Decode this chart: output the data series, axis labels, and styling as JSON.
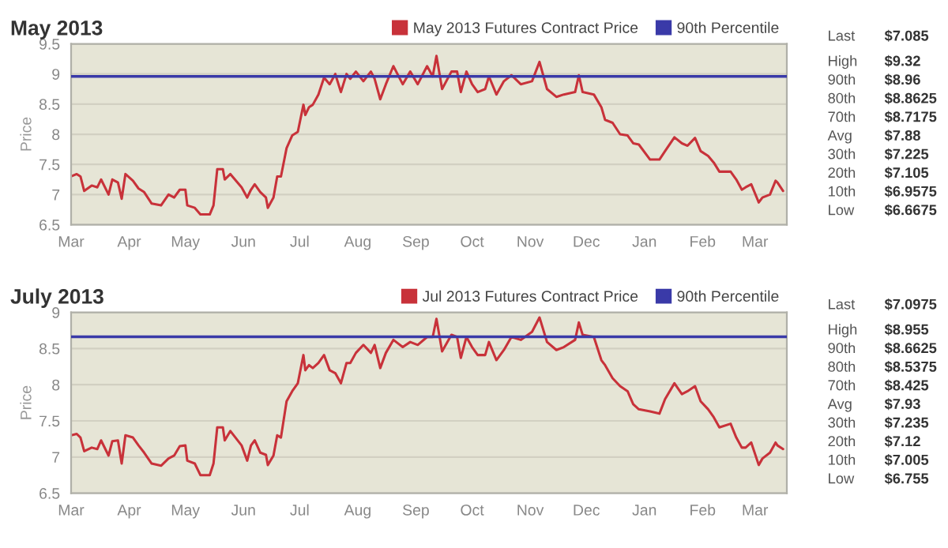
{
  "chart_data": [
    {
      "type": "line",
      "title": "May 2013",
      "ylabel": "Price",
      "x": [
        "2012-03-01",
        "2012-03-04",
        "2012-03-06",
        "2012-03-08",
        "2012-03-12",
        "2012-03-15",
        "2012-03-17",
        "2012-03-21",
        "2012-03-23",
        "2012-03-26",
        "2012-03-28",
        "2012-03-30",
        "2012-04-03",
        "2012-04-06",
        "2012-04-09",
        "2012-04-13",
        "2012-04-18",
        "2012-04-22",
        "2012-04-25",
        "2012-04-28",
        "2012-05-01",
        "2012-05-02",
        "2012-05-06",
        "2012-05-09",
        "2012-05-14",
        "2012-05-16",
        "2012-05-18",
        "2012-05-21",
        "2012-05-22",
        "2012-05-25",
        "2012-05-31",
        "2012-06-03",
        "2012-06-05",
        "2012-06-07",
        "2012-06-10",
        "2012-06-13",
        "2012-06-14",
        "2012-06-17",
        "2012-06-19",
        "2012-06-21",
        "2012-06-24",
        "2012-06-27",
        "2012-06-30",
        "2012-07-03",
        "2012-07-04",
        "2012-07-06",
        "2012-07-08",
        "2012-07-11",
        "2012-07-14",
        "2012-07-17",
        "2012-07-20",
        "2012-07-23",
        "2012-07-26",
        "2012-07-28",
        "2012-07-31",
        "2012-08-04",
        "2012-08-08",
        "2012-08-10",
        "2012-08-13",
        "2012-08-16",
        "2012-08-20",
        "2012-08-25",
        "2012-08-29",
        "2012-09-02",
        "2012-09-07",
        "2012-09-10",
        "2012-09-12",
        "2012-09-15",
        "2012-09-20",
        "2012-09-23",
        "2012-09-25",
        "2012-09-28",
        "2012-10-01",
        "2012-10-04",
        "2012-10-08",
        "2012-10-10",
        "2012-10-14",
        "2012-10-18",
        "2012-10-22",
        "2012-10-27",
        "2012-11-02",
        "2012-11-06",
        "2012-11-10",
        "2012-11-15",
        "2012-11-19",
        "2012-11-25",
        "2012-11-27",
        "2012-11-29",
        "2012-12-05",
        "2012-12-09",
        "2012-12-11",
        "2012-12-15",
        "2012-12-19",
        "2012-12-23",
        "2012-12-26",
        "2012-12-29",
        "2013-01-04",
        "2013-01-09",
        "2013-01-12",
        "2013-01-17",
        "2013-01-21",
        "2013-01-24",
        "2013-01-28",
        "2013-01-31",
        "2013-02-04",
        "2013-02-07",
        "2013-02-10",
        "2013-02-16",
        "2013-02-19",
        "2013-02-22",
        "2013-02-24",
        "2013-02-27",
        "2013-03-03",
        "2013-03-05",
        "2013-03-09",
        "2013-03-12",
        "2013-03-13",
        "2013-03-16"
      ],
      "series": [
        {
          "name": "May 2013 Futures Contract Price",
          "color": "#c8323a",
          "values": [
            7.3,
            7.34,
            7.3,
            7.06,
            7.15,
            7.12,
            7.25,
            7.0,
            7.25,
            7.2,
            6.93,
            7.34,
            7.23,
            7.1,
            7.04,
            6.85,
            6.82,
            7.0,
            6.95,
            7.08,
            7.08,
            6.82,
            6.78,
            6.67,
            6.67,
            6.82,
            7.42,
            7.42,
            7.25,
            7.34,
            7.12,
            6.95,
            7.08,
            7.17,
            7.04,
            6.95,
            6.78,
            6.95,
            7.3,
            7.3,
            7.77,
            7.98,
            8.04,
            8.49,
            8.32,
            8.45,
            8.49,
            8.66,
            8.94,
            8.83,
            9.0,
            8.7,
            9.0,
            8.92,
            9.04,
            8.88,
            9.04,
            8.92,
            8.58,
            8.83,
            9.13,
            8.83,
            9.04,
            8.83,
            9.13,
            8.96,
            9.3,
            8.75,
            9.04,
            9.04,
            8.7,
            9.04,
            8.83,
            8.7,
            8.75,
            8.96,
            8.66,
            8.88,
            8.98,
            8.83,
            8.88,
            9.2,
            8.75,
            8.62,
            8.66,
            8.7,
            8.98,
            8.7,
            8.66,
            8.45,
            8.24,
            8.19,
            8.0,
            7.98,
            7.85,
            7.83,
            7.58,
            7.58,
            7.72,
            7.95,
            7.85,
            7.81,
            7.94,
            7.72,
            7.64,
            7.53,
            7.38,
            7.38,
            7.25,
            7.08,
            7.12,
            7.17,
            6.87,
            6.95,
            7.0,
            7.23,
            7.2,
            7.06
          ]
        }
      ],
      "ref_lines": [
        {
          "axis": "y",
          "value": 8.96,
          "label": "90th Percentile",
          "color": "#3a3aa8"
        }
      ],
      "xlim": [
        "2012-03-01",
        "2013-03-18"
      ],
      "xticks": [
        {
          "value": "2012-03-01",
          "label": "Mar"
        },
        {
          "value": "2012-04-01",
          "label": "Apr"
        },
        {
          "value": "2012-05-01",
          "label": "May"
        },
        {
          "value": "2012-06-01",
          "label": "Jun"
        },
        {
          "value": "2012-07-01",
          "label": "Jul"
        },
        {
          "value": "2012-08-01",
          "label": "Aug"
        },
        {
          "value": "2012-09-01",
          "label": "Sep"
        },
        {
          "value": "2012-10-01",
          "label": "Oct"
        },
        {
          "value": "2012-11-01",
          "label": "Nov"
        },
        {
          "value": "2012-12-01",
          "label": "Dec"
        },
        {
          "value": "2013-01-01",
          "label": "Jan"
        },
        {
          "value": "2013-02-01",
          "label": "Feb"
        },
        {
          "value": "2013-03-01",
          "label": "Mar"
        }
      ],
      "ylim": [
        6.5,
        9.5
      ],
      "yticks": [
        6.5,
        7,
        7.5,
        8,
        8.5,
        9,
        9.5
      ],
      "grid": "y",
      "legend": "top right",
      "marker": "none",
      "line_style": "solid",
      "annotations": [
        "Last",
        "$7.085",
        "High",
        "$9.32",
        "90th",
        "$8.96",
        "80th",
        "$8.8625",
        "70th",
        "$8.7175",
        "Avg",
        "$7.88",
        "30th",
        "$7.225",
        "20th",
        "$7.105",
        "10th",
        "$6.9575",
        "Low",
        "$6.6675"
      ]
    },
    {
      "type": "line",
      "title": "July 2013",
      "ylabel": "Price",
      "x": [
        "2012-03-01",
        "2012-03-04",
        "2012-03-06",
        "2012-03-08",
        "2012-03-12",
        "2012-03-15",
        "2012-03-17",
        "2012-03-21",
        "2012-03-23",
        "2012-03-26",
        "2012-03-28",
        "2012-03-30",
        "2012-04-03",
        "2012-04-06",
        "2012-04-09",
        "2012-04-13",
        "2012-04-18",
        "2012-04-22",
        "2012-04-25",
        "2012-04-28",
        "2012-05-01",
        "2012-05-02",
        "2012-05-06",
        "2012-05-09",
        "2012-05-14",
        "2012-05-16",
        "2012-05-18",
        "2012-05-21",
        "2012-05-22",
        "2012-05-25",
        "2012-05-31",
        "2012-06-03",
        "2012-06-05",
        "2012-06-07",
        "2012-06-10",
        "2012-06-13",
        "2012-06-14",
        "2012-06-17",
        "2012-06-19",
        "2012-06-21",
        "2012-06-24",
        "2012-06-27",
        "2012-06-30",
        "2012-07-03",
        "2012-07-04",
        "2012-07-06",
        "2012-07-08",
        "2012-07-11",
        "2012-07-14",
        "2012-07-17",
        "2012-07-20",
        "2012-07-23",
        "2012-07-26",
        "2012-07-28",
        "2012-07-31",
        "2012-08-04",
        "2012-08-08",
        "2012-08-10",
        "2012-08-13",
        "2012-08-16",
        "2012-08-20",
        "2012-08-25",
        "2012-08-29",
        "2012-09-02",
        "2012-09-07",
        "2012-09-10",
        "2012-09-12",
        "2012-09-15",
        "2012-09-20",
        "2012-09-23",
        "2012-09-25",
        "2012-09-28",
        "2012-10-01",
        "2012-10-04",
        "2012-10-08",
        "2012-10-10",
        "2012-10-14",
        "2012-10-18",
        "2012-10-22",
        "2012-10-27",
        "2012-11-02",
        "2012-11-06",
        "2012-11-10",
        "2012-11-15",
        "2012-11-19",
        "2012-11-25",
        "2012-11-27",
        "2012-11-29",
        "2012-12-05",
        "2012-12-09",
        "2012-12-11",
        "2012-12-15",
        "2012-12-19",
        "2012-12-23",
        "2012-12-26",
        "2012-12-29",
        "2013-01-04",
        "2013-01-09",
        "2013-01-12",
        "2013-01-17",
        "2013-01-21",
        "2013-01-24",
        "2013-01-28",
        "2013-01-31",
        "2013-02-04",
        "2013-02-07",
        "2013-02-10",
        "2013-02-16",
        "2013-02-19",
        "2013-02-22",
        "2013-02-24",
        "2013-02-27",
        "2013-03-03",
        "2013-03-05",
        "2013-03-09",
        "2013-03-12",
        "2013-03-13",
        "2013-03-16"
      ],
      "series": [
        {
          "name": "Jul 2013 Futures Contract Price",
          "color": "#c8323a",
          "values": [
            7.3,
            7.32,
            7.27,
            7.08,
            7.13,
            7.11,
            7.23,
            7.02,
            7.22,
            7.23,
            6.91,
            7.3,
            7.27,
            7.16,
            7.06,
            6.91,
            6.88,
            6.98,
            7.02,
            7.15,
            7.16,
            6.95,
            6.91,
            6.75,
            6.75,
            6.91,
            7.41,
            7.41,
            7.23,
            7.36,
            7.16,
            6.95,
            7.16,
            7.23,
            7.06,
            7.03,
            6.89,
            7.02,
            7.3,
            7.27,
            7.77,
            7.91,
            8.02,
            8.41,
            8.2,
            8.27,
            8.23,
            8.3,
            8.41,
            8.2,
            8.16,
            8.02,
            8.3,
            8.3,
            8.44,
            8.55,
            8.44,
            8.55,
            8.23,
            8.44,
            8.62,
            8.52,
            8.59,
            8.55,
            8.66,
            8.66,
            8.91,
            8.46,
            8.69,
            8.66,
            8.37,
            8.66,
            8.52,
            8.41,
            8.41,
            8.59,
            8.34,
            8.48,
            8.66,
            8.62,
            8.73,
            8.93,
            8.59,
            8.48,
            8.52,
            8.62,
            8.86,
            8.69,
            8.66,
            8.34,
            8.27,
            8.09,
            7.98,
            7.91,
            7.73,
            7.66,
            7.63,
            7.6,
            7.8,
            8.02,
            7.87,
            7.91,
            7.98,
            7.77,
            7.66,
            7.55,
            7.41,
            7.46,
            7.27,
            7.13,
            7.13,
            7.2,
            6.89,
            6.98,
            7.06,
            7.2,
            7.16,
            7.11
          ]
        }
      ],
      "ref_lines": [
        {
          "axis": "y",
          "value": 8.6625,
          "label": "90th Percentile",
          "color": "#3a3aa8"
        }
      ],
      "xlim": [
        "2012-03-01",
        "2013-03-18"
      ],
      "xticks": [
        {
          "value": "2012-03-01",
          "label": "Mar"
        },
        {
          "value": "2012-04-01",
          "label": "Apr"
        },
        {
          "value": "2012-05-01",
          "label": "May"
        },
        {
          "value": "2012-06-01",
          "label": "Jun"
        },
        {
          "value": "2012-07-01",
          "label": "Jul"
        },
        {
          "value": "2012-08-01",
          "label": "Aug"
        },
        {
          "value": "2012-09-01",
          "label": "Sep"
        },
        {
          "value": "2012-10-01",
          "label": "Oct"
        },
        {
          "value": "2012-11-01",
          "label": "Nov"
        },
        {
          "value": "2012-12-01",
          "label": "Dec"
        },
        {
          "value": "2013-01-01",
          "label": "Jan"
        },
        {
          "value": "2013-02-01",
          "label": "Feb"
        },
        {
          "value": "2013-03-01",
          "label": "Mar"
        }
      ],
      "ylim": [
        6.5,
        9
      ],
      "yticks": [
        6.5,
        7,
        7.5,
        8,
        8.5,
        9
      ],
      "grid": "y",
      "legend": "top right",
      "marker": "none",
      "line_style": "solid",
      "annotations": [
        "Last",
        "$7.0975",
        "High",
        "$8.955",
        "90th",
        "$8.6625",
        "80th",
        "$8.5375",
        "70th",
        "$8.425",
        "Avg",
        "$7.93",
        "30th",
        "$7.235",
        "20th",
        "$7.12",
        "10th",
        "$7.005",
        "Low",
        "$6.755"
      ]
    }
  ]
}
